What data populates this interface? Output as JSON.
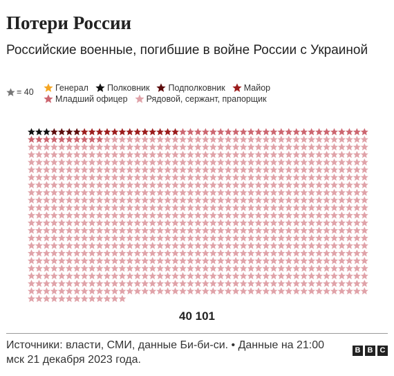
{
  "title": "Потери России",
  "subtitle": "Российские военные, погибшие в войне России с Украиной",
  "unit_label": "= 40",
  "unit_color": "#777777",
  "legend": [
    {
      "label": "Генерал",
      "color": "#f5a623"
    },
    {
      "label": "Полковник",
      "color": "#111111"
    },
    {
      "label": "Подполковник",
      "color": "#5c0c0c"
    },
    {
      "label": "Майор",
      "color": "#9b1c1c"
    },
    {
      "label": "Младший офицер",
      "color": "#cc6670"
    },
    {
      "label": "Рядовой, сержант, прапорщик",
      "color": "#e0a3a9"
    }
  ],
  "chart_data": {
    "type": "icon-array",
    "unit_value": 40,
    "columns": 45,
    "total_label": "40 101",
    "series": [
      {
        "name": "Генерал",
        "icons": 0
      },
      {
        "name": "Полковник",
        "icons": 3
      },
      {
        "name": "Подполковник",
        "icons": 4
      },
      {
        "name": "Майор",
        "icons": 13
      },
      {
        "name": "Младший офицер",
        "icons": 35
      },
      {
        "name": "Рядовой, сержант, прапорщик",
        "icons": 948
      }
    ]
  },
  "source": "Источники: власти, СМИ, данные Би-би-си. • Данные на 21:00 мск 21 декабря 2023 года.",
  "logo": [
    "B",
    "B",
    "C"
  ]
}
